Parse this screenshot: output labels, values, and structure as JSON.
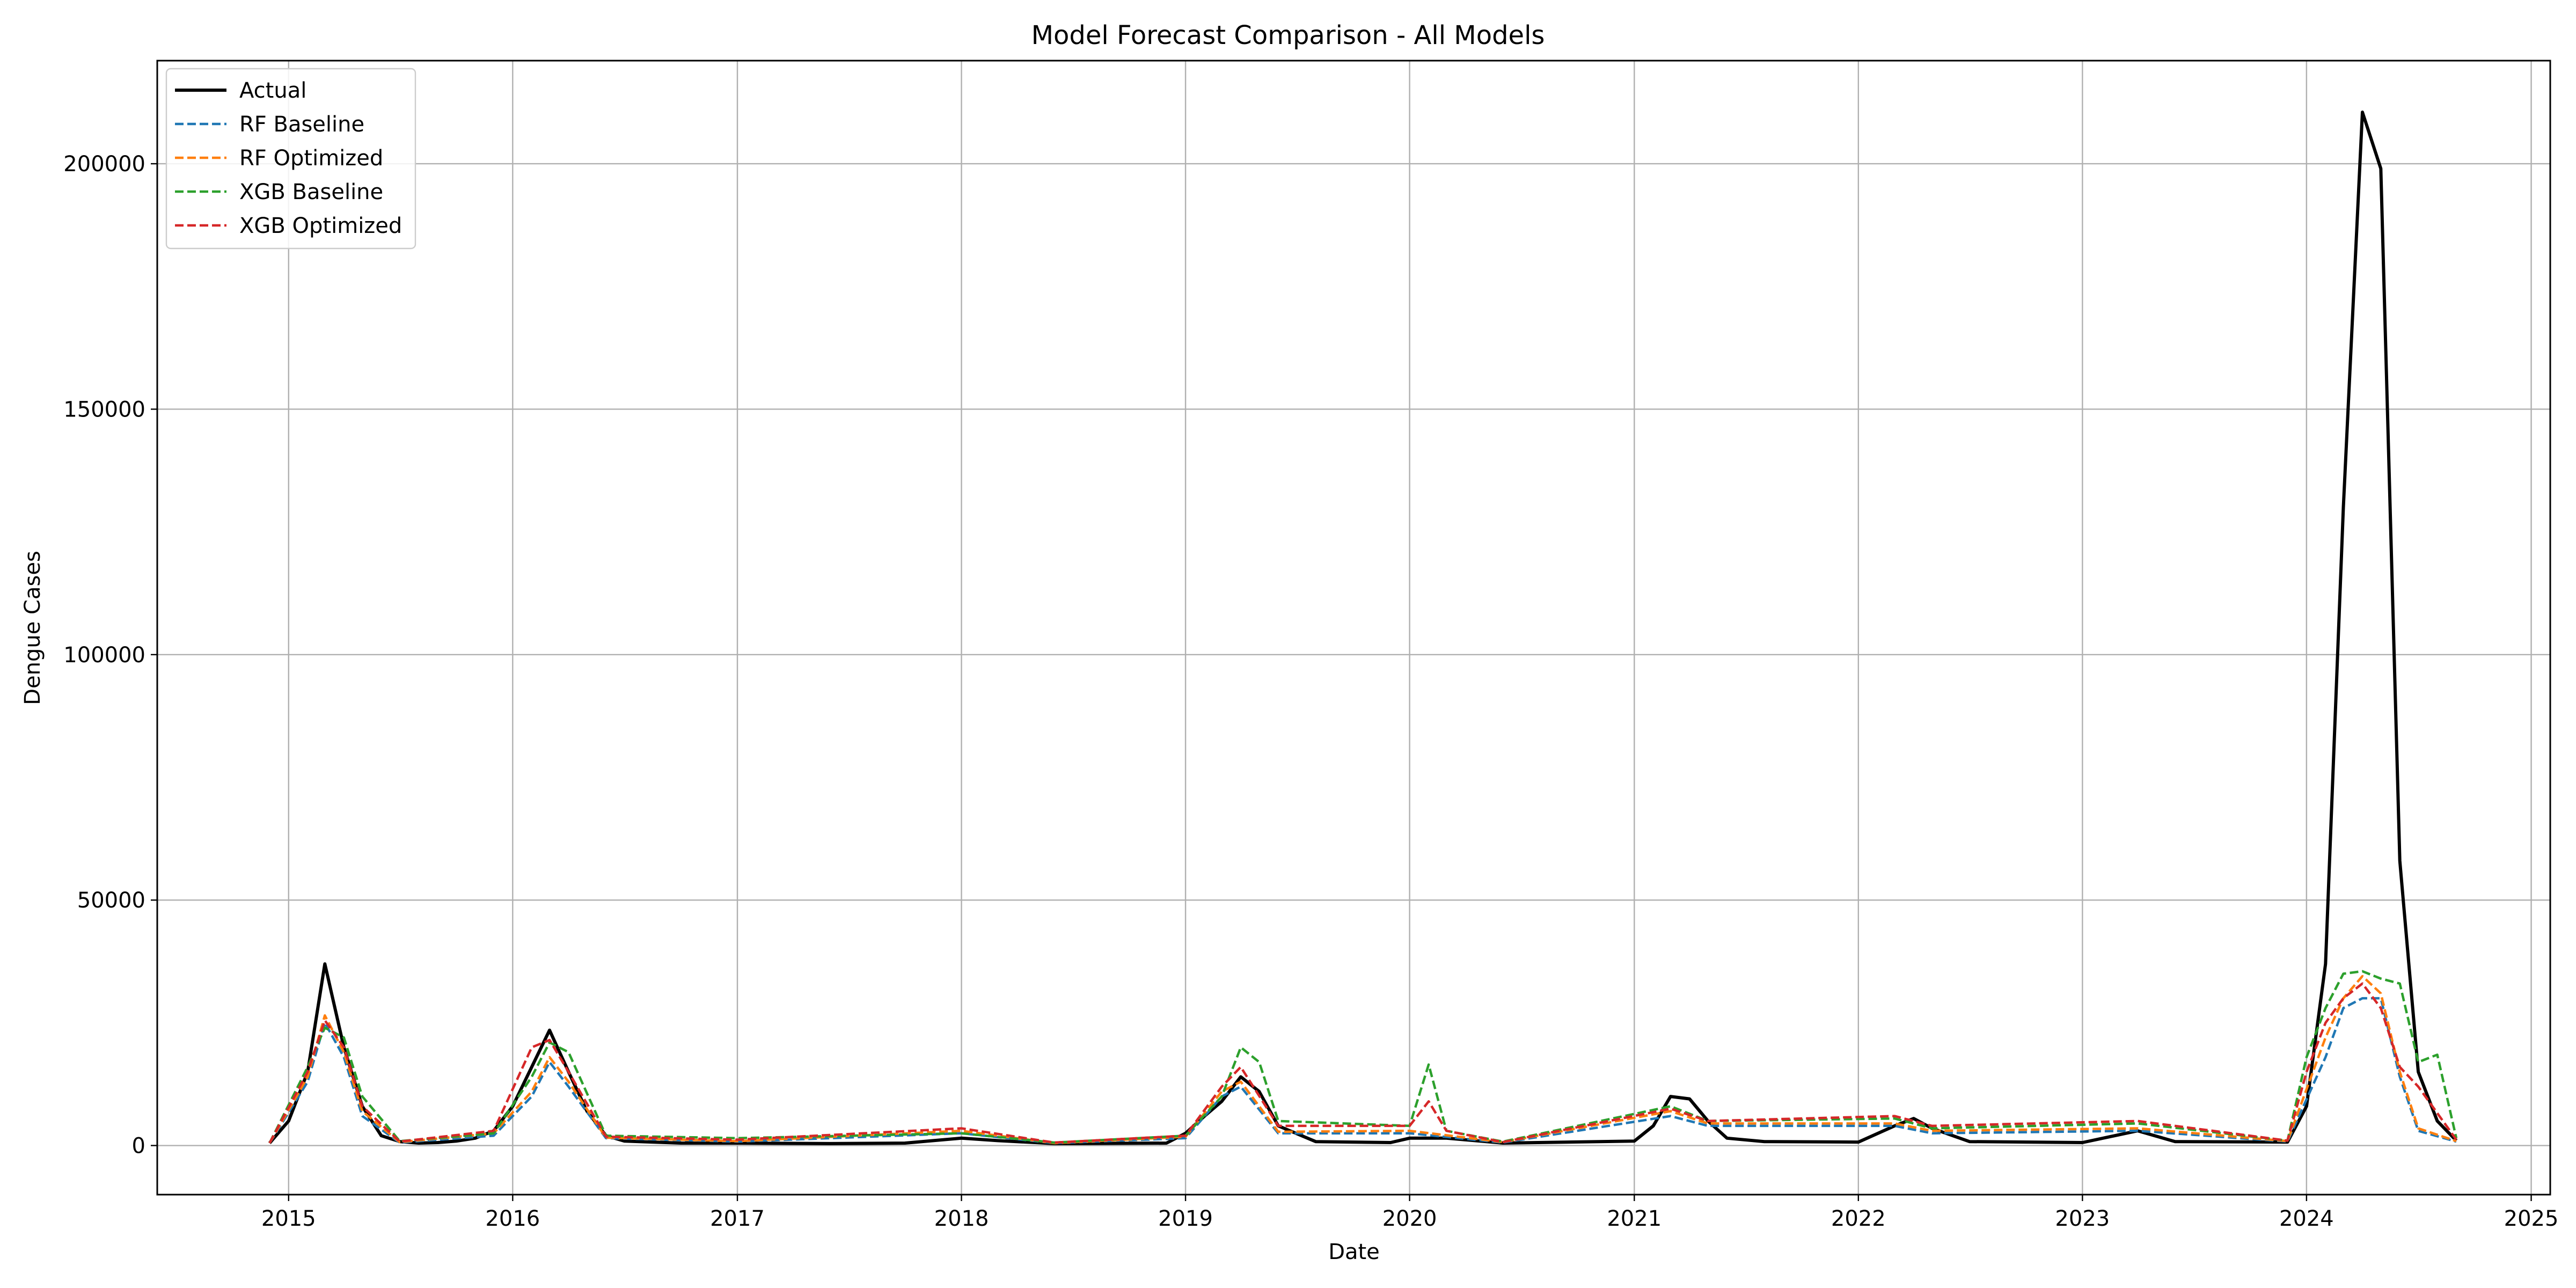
{
  "chart_data": {
    "type": "line",
    "title": "Model Forecast Comparison - All Models",
    "xlabel": "Date",
    "ylabel": "Dengue Cases",
    "xlim": [
      "2014-06-01",
      "2025-02-01"
    ],
    "ylim": [
      -10000,
      221000
    ],
    "x_ticks": [
      "2015",
      "2016",
      "2017",
      "2018",
      "2019",
      "2020",
      "2021",
      "2022",
      "2023",
      "2024",
      "2025"
    ],
    "y_ticks": [
      0,
      50000,
      100000,
      150000,
      200000
    ],
    "y_tick_labels": [
      "0",
      "50000",
      "100000",
      "150000",
      "200000"
    ],
    "grid": true,
    "legend_position": "top-left",
    "series": [
      {
        "name": "Actual",
        "color": "#000000",
        "style": "solid",
        "points": [
          [
            "2014-12-01",
            500
          ],
          [
            "2015-01-01",
            5000
          ],
          [
            "2015-02-01",
            15000
          ],
          [
            "2015-03-01",
            37000
          ],
          [
            "2015-04-01",
            20000
          ],
          [
            "2015-05-01",
            8000
          ],
          [
            "2015-06-01",
            2000
          ],
          [
            "2015-07-01",
            800
          ],
          [
            "2015-08-01",
            500
          ],
          [
            "2015-09-01",
            600
          ],
          [
            "2015-10-01",
            900
          ],
          [
            "2015-11-01",
            1500
          ],
          [
            "2015-12-01",
            3000
          ],
          [
            "2016-01-01",
            8000
          ],
          [
            "2016-02-01",
            16000
          ],
          [
            "2016-03-01",
            23500
          ],
          [
            "2016-04-01",
            15000
          ],
          [
            "2016-05-01",
            7000
          ],
          [
            "2016-06-01",
            2000
          ],
          [
            "2016-07-01",
            900
          ],
          [
            "2016-10-01",
            500
          ],
          [
            "2017-01-01",
            500
          ],
          [
            "2017-06-01",
            400
          ],
          [
            "2017-10-01",
            500
          ],
          [
            "2018-01-01",
            1500
          ],
          [
            "2018-03-01",
            1000
          ],
          [
            "2018-06-01",
            400
          ],
          [
            "2018-12-01",
            500
          ],
          [
            "2019-01-01",
            2500
          ],
          [
            "2019-02-01",
            6000
          ],
          [
            "2019-03-01",
            9000
          ],
          [
            "2019-04-01",
            14000
          ],
          [
            "2019-05-01",
            11000
          ],
          [
            "2019-06-01",
            4000
          ],
          [
            "2019-08-01",
            800
          ],
          [
            "2019-12-01",
            600
          ],
          [
            "2020-01-01",
            1500
          ],
          [
            "2020-03-01",
            1500
          ],
          [
            "2020-06-01",
            500
          ],
          [
            "2021-01-01",
            900
          ],
          [
            "2021-02-01",
            4000
          ],
          [
            "2021-03-01",
            10000
          ],
          [
            "2021-04-01",
            9500
          ],
          [
            "2021-05-01",
            5000
          ],
          [
            "2021-06-01",
            1500
          ],
          [
            "2021-08-01",
            800
          ],
          [
            "2022-01-01",
            700
          ],
          [
            "2022-03-01",
            4000
          ],
          [
            "2022-04-01",
            5500
          ],
          [
            "2022-05-01",
            3500
          ],
          [
            "2022-07-01",
            800
          ],
          [
            "2023-01-01",
            600
          ],
          [
            "2023-04-01",
            3000
          ],
          [
            "2023-06-01",
            800
          ],
          [
            "2023-12-01",
            700
          ],
          [
            "2024-01-01",
            8000
          ],
          [
            "2024-02-01",
            37000
          ],
          [
            "2024-03-01",
            130000
          ],
          [
            "2024-04-01",
            210500
          ],
          [
            "2024-05-01",
            199000
          ],
          [
            "2024-06-01",
            58000
          ],
          [
            "2024-07-01",
            15000
          ],
          [
            "2024-08-01",
            5000
          ],
          [
            "2024-09-01",
            1000
          ]
        ]
      },
      {
        "name": "RF Baseline",
        "color": "#1f77b4",
        "style": "dashed",
        "points": [
          [
            "2014-12-01",
            500
          ],
          [
            "2015-02-01",
            13000
          ],
          [
            "2015-03-01",
            25000
          ],
          [
            "2015-04-01",
            18000
          ],
          [
            "2015-05-01",
            6000
          ],
          [
            "2015-07-01",
            600
          ],
          [
            "2015-12-01",
            2000
          ],
          [
            "2016-02-01",
            10000
          ],
          [
            "2016-03-01",
            17000
          ],
          [
            "2016-04-01",
            12000
          ],
          [
            "2016-06-01",
            1500
          ],
          [
            "2017-01-01",
            800
          ],
          [
            "2018-01-01",
            2500
          ],
          [
            "2018-06-01",
            500
          ],
          [
            "2019-01-01",
            1500
          ],
          [
            "2019-03-01",
            10000
          ],
          [
            "2019-04-01",
            12000
          ],
          [
            "2019-06-01",
            2500
          ],
          [
            "2020-01-01",
            2500
          ],
          [
            "2020-06-01",
            600
          ],
          [
            "2021-03-01",
            6000
          ],
          [
            "2021-05-01",
            4000
          ],
          [
            "2022-03-01",
            4000
          ],
          [
            "2022-05-01",
            2500
          ],
          [
            "2023-04-01",
            3000
          ],
          [
            "2023-12-01",
            800
          ],
          [
            "2024-02-01",
            18000
          ],
          [
            "2024-03-01",
            28000
          ],
          [
            "2024-04-01",
            30000
          ],
          [
            "2024-05-01",
            30000
          ],
          [
            "2024-06-01",
            14000
          ],
          [
            "2024-07-01",
            3000
          ],
          [
            "2024-09-01",
            800
          ]
        ]
      },
      {
        "name": "RF Optimized",
        "color": "#ff7f0e",
        "style": "dashed",
        "points": [
          [
            "2014-12-01",
            500
          ],
          [
            "2015-02-01",
            14000
          ],
          [
            "2015-03-01",
            26500
          ],
          [
            "2015-04-01",
            19000
          ],
          [
            "2015-05-01",
            7000
          ],
          [
            "2015-07-01",
            700
          ],
          [
            "2015-12-01",
            2500
          ],
          [
            "2016-02-01",
            11000
          ],
          [
            "2016-03-01",
            18000
          ],
          [
            "2016-04-01",
            13000
          ],
          [
            "2016-06-01",
            1600
          ],
          [
            "2017-01-01",
            900
          ],
          [
            "2018-01-01",
            3000
          ],
          [
            "2018-06-01",
            500
          ],
          [
            "2019-01-01",
            1800
          ],
          [
            "2019-03-01",
            11000
          ],
          [
            "2019-04-01",
            13000
          ],
          [
            "2019-06-01",
            2800
          ],
          [
            "2020-01-01",
            3000
          ],
          [
            "2020-06-01",
            700
          ],
          [
            "2021-03-01",
            7000
          ],
          [
            "2021-05-01",
            4500
          ],
          [
            "2022-03-01",
            4500
          ],
          [
            "2022-05-01",
            3000
          ],
          [
            "2023-04-01",
            3500
          ],
          [
            "2023-12-01",
            900
          ],
          [
            "2024-02-01",
            22000
          ],
          [
            "2024-03-01",
            30000
          ],
          [
            "2024-04-01",
            34500
          ],
          [
            "2024-05-01",
            31000
          ],
          [
            "2024-06-01",
            15000
          ],
          [
            "2024-07-01",
            3500
          ],
          [
            "2024-09-01",
            900
          ]
        ]
      },
      {
        "name": "XGB Baseline",
        "color": "#2ca02c",
        "style": "dashed",
        "points": [
          [
            "2014-12-01",
            500
          ],
          [
            "2015-02-01",
            16000
          ],
          [
            "2015-03-01",
            24000
          ],
          [
            "2015-04-01",
            22000
          ],
          [
            "2015-05-01",
            10000
          ],
          [
            "2015-07-01",
            900
          ],
          [
            "2015-12-01",
            2500
          ],
          [
            "2016-02-01",
            14000
          ],
          [
            "2016-03-01",
            21000
          ],
          [
            "2016-04-01",
            19000
          ],
          [
            "2016-06-01",
            2000
          ],
          [
            "2017-01-01",
            1500
          ],
          [
            "2018-01-01",
            2500
          ],
          [
            "2018-06-01",
            600
          ],
          [
            "2019-01-01",
            2000
          ],
          [
            "2019-03-01",
            10000
          ],
          [
            "2019-04-01",
            20000
          ],
          [
            "2019-05-01",
            17000
          ],
          [
            "2019-06-01",
            5000
          ],
          [
            "2020-01-01",
            4000
          ],
          [
            "2020-02-01",
            16500
          ],
          [
            "2020-03-01",
            3000
          ],
          [
            "2020-06-01",
            800
          ],
          [
            "2021-03-01",
            8000
          ],
          [
            "2021-05-01",
            5000
          ],
          [
            "2022-03-01",
            5500
          ],
          [
            "2022-05-01",
            3500
          ],
          [
            "2023-04-01",
            4500
          ],
          [
            "2023-12-01",
            1000
          ],
          [
            "2024-01-01",
            18000
          ],
          [
            "2024-02-01",
            28000
          ],
          [
            "2024-03-01",
            35000
          ],
          [
            "2024-04-01",
            35500
          ],
          [
            "2024-05-01",
            34000
          ],
          [
            "2024-06-01",
            33000
          ],
          [
            "2024-07-01",
            17000
          ],
          [
            "2024-08-01",
            18500
          ],
          [
            "2024-09-01",
            1500
          ]
        ]
      },
      {
        "name": "XGB Optimized",
        "color": "#d62728",
        "style": "dashed",
        "points": [
          [
            "2014-12-01",
            500
          ],
          [
            "2015-02-01",
            15000
          ],
          [
            "2015-03-01",
            25500
          ],
          [
            "2015-04-01",
            20000
          ],
          [
            "2015-05-01",
            8000
          ],
          [
            "2015-07-01",
            800
          ],
          [
            "2015-12-01",
            3000
          ],
          [
            "2016-02-01",
            20000
          ],
          [
            "2016-03-01",
            21500
          ],
          [
            "2016-04-01",
            15000
          ],
          [
            "2016-06-01",
            1800
          ],
          [
            "2017-01-01",
            1200
          ],
          [
            "2018-01-01",
            3500
          ],
          [
            "2018-06-01",
            600
          ],
          [
            "2019-01-01",
            2000
          ],
          [
            "2019-03-01",
            12000
          ],
          [
            "2019-04-01",
            16000
          ],
          [
            "2019-06-01",
            4000
          ],
          [
            "2020-01-01",
            4000
          ],
          [
            "2020-02-01",
            9000
          ],
          [
            "2020-03-01",
            3000
          ],
          [
            "2020-06-01",
            700
          ],
          [
            "2021-03-01",
            7500
          ],
          [
            "2021-05-01",
            5000
          ],
          [
            "2022-03-01",
            6000
          ],
          [
            "2022-05-01",
            4000
          ],
          [
            "2023-04-01",
            5000
          ],
          [
            "2023-12-01",
            1000
          ],
          [
            "2024-01-01",
            15000
          ],
          [
            "2024-02-01",
            25000
          ],
          [
            "2024-03-01",
            30000
          ],
          [
            "2024-04-01",
            33000
          ],
          [
            "2024-05-01",
            28000
          ],
          [
            "2024-06-01",
            16000
          ],
          [
            "2024-07-01",
            12000
          ],
          [
            "2024-09-01",
            1200
          ]
        ]
      }
    ]
  }
}
